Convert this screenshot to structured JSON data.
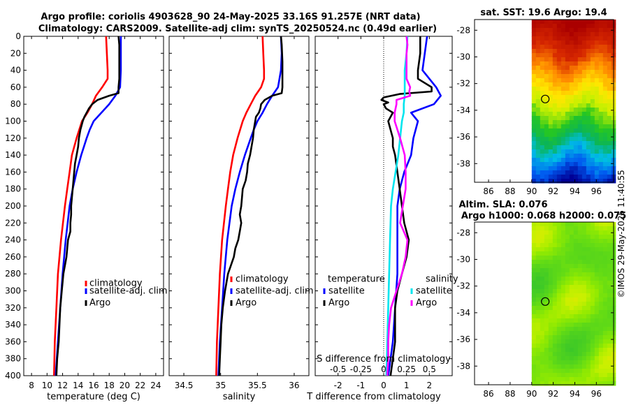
{
  "title_line1": "Argo profile: coriolis 4903628_90 24-May-2025 33.16S 91.257E (NRT data)",
  "title_line2": "Climatology: CARS2009. Satellite-adj clim: synTS_20250524.nc (0.49d earlier)",
  "credit": "©IMOS 29-May-2025 11:40:55",
  "colors": {
    "climatology": "#ff0000",
    "satellite": "#0000ff",
    "argo": "#000000",
    "salinity_sat": "#00e5ee",
    "salinity_argo": "#ff00ff"
  },
  "chart_data": [
    {
      "type": "line",
      "id": "temperature",
      "xlabel": "temperature (deg C)",
      "ylabel": "",
      "xlim": [
        7,
        25
      ],
      "ylim": [
        400,
        0
      ],
      "xticks": [
        8,
        10,
        12,
        14,
        16,
        18,
        20,
        22,
        24
      ],
      "yticks": [
        0,
        20,
        40,
        60,
        80,
        100,
        120,
        140,
        160,
        180,
        200,
        220,
        240,
        260,
        280,
        300,
        320,
        340,
        360,
        380,
        400
      ],
      "legend": [
        "climatology",
        "satellite-adj. clim",
        "Argo"
      ],
      "series": [
        {
          "name": "climatology",
          "color": "#ff0000",
          "depth": [
            0,
            20,
            40,
            50,
            60,
            70,
            80,
            90,
            100,
            120,
            140,
            160,
            180,
            200,
            240,
            280,
            320,
            360,
            400
          ],
          "values": [
            17.6,
            17.7,
            17.8,
            17.8,
            17.1,
            16.3,
            15.8,
            15.2,
            14.5,
            13.8,
            13.2,
            12.9,
            12.6,
            12.3,
            11.8,
            11.4,
            11.2,
            11.0,
            10.9
          ]
        },
        {
          "name": "satellite-adj. clim",
          "color": "#0000ff",
          "depth": [
            0,
            20,
            40,
            60,
            70,
            80,
            90,
            100,
            110,
            120,
            140,
            160,
            180,
            200,
            240,
            280,
            320,
            360,
            400
          ],
          "values": [
            19.5,
            19.5,
            19.5,
            19.4,
            18.8,
            18.0,
            17.0,
            16.0,
            15.5,
            15.1,
            14.4,
            13.8,
            13.3,
            12.9,
            12.4,
            12.0,
            11.7,
            11.4,
            11.1
          ]
        },
        {
          "name": "Argo",
          "color": "#000000",
          "depth": [
            0,
            10,
            30,
            50,
            60,
            67,
            70,
            75,
            80,
            85,
            90,
            95,
            100,
            110,
            120,
            130,
            140,
            150,
            160,
            170,
            180,
            200,
            210,
            220,
            230,
            240,
            250,
            260,
            270,
            280,
            300,
            320,
            340,
            360,
            380,
            400
          ],
          "values": [
            19.2,
            19.3,
            19.3,
            19.3,
            19.2,
            19.2,
            18.0,
            16.5,
            15.8,
            15.4,
            15.1,
            14.8,
            14.6,
            14.3,
            14.1,
            14.0,
            13.8,
            13.6,
            13.5,
            13.4,
            13.3,
            13.1,
            13.1,
            13.0,
            13.0,
            12.7,
            12.6,
            12.5,
            12.3,
            12.1,
            11.9,
            11.7,
            11.6,
            11.5,
            11.3,
            11.2
          ]
        }
      ]
    },
    {
      "type": "line",
      "id": "salinity",
      "xlabel": "salinity",
      "ylabel": "",
      "xlim": [
        34.3,
        36.2
      ],
      "ylim": [
        400,
        0
      ],
      "xticks": [
        34.5,
        35,
        35.5,
        36
      ],
      "xticklabels": [
        "34.5",
        "35",
        "35.5",
        "36"
      ],
      "legend": [
        "climatology",
        "satellite-adj. clim",
        "Argo"
      ],
      "series": [
        {
          "name": "climatology",
          "color": "#ff0000",
          "depth": [
            0,
            20,
            40,
            50,
            60,
            70,
            80,
            90,
            100,
            120,
            140,
            160,
            180,
            200,
            240,
            280,
            320,
            360,
            400
          ],
          "values": [
            35.57,
            35.58,
            35.59,
            35.59,
            35.55,
            35.47,
            35.41,
            35.35,
            35.3,
            35.23,
            35.17,
            35.13,
            35.1,
            35.07,
            35.02,
            34.99,
            34.97,
            34.95,
            34.94
          ]
        },
        {
          "name": "satellite-adj. clim",
          "color": "#0000ff",
          "depth": [
            0,
            20,
            40,
            60,
            70,
            80,
            90,
            100,
            110,
            120,
            140,
            160,
            180,
            200,
            240,
            280,
            320,
            360,
            400
          ],
          "values": [
            35.82,
            35.83,
            35.82,
            35.78,
            35.7,
            35.63,
            35.57,
            35.5,
            35.45,
            35.41,
            35.33,
            35.26,
            35.2,
            35.15,
            35.09,
            35.05,
            35.02,
            34.99,
            34.97
          ]
        },
        {
          "name": "Argo",
          "color": "#000000",
          "depth": [
            0,
            10,
            30,
            50,
            60,
            67,
            70,
            75,
            80,
            85,
            90,
            95,
            100,
            110,
            120,
            130,
            140,
            150,
            160,
            170,
            180,
            200,
            210,
            220,
            230,
            240,
            250,
            260,
            270,
            280,
            300,
            320,
            340,
            360,
            380,
            400
          ],
          "values": [
            35.82,
            35.83,
            35.84,
            35.84,
            35.84,
            35.83,
            35.7,
            35.6,
            35.55,
            35.54,
            35.52,
            35.48,
            35.47,
            35.45,
            35.44,
            35.42,
            35.4,
            35.37,
            35.36,
            35.34,
            35.3,
            35.28,
            35.26,
            35.28,
            35.26,
            35.24,
            35.2,
            35.18,
            35.14,
            35.1,
            35.06,
            35.03,
            35.01,
            35.0,
            34.99,
            34.98
          ]
        }
      ]
    },
    {
      "type": "line",
      "id": "difference",
      "xlabel": "T difference from climatology",
      "xlabel_top": "S difference from climatology",
      "xlim": [
        -3,
        3
      ],
      "ylim": [
        400,
        0
      ],
      "xticks": [
        -2,
        -1,
        0,
        1,
        2
      ],
      "xticklabels": [
        "-2",
        "-1",
        "0",
        "1",
        "2"
      ],
      "sticks": [
        -0.5,
        -0.25,
        0,
        0.25,
        0.5
      ],
      "sticklabels": [
        "-0.5",
        "-0.25",
        "0",
        "0.25",
        "0.5"
      ],
      "legend_temperature_title": "temperature",
      "legend_salinity_title": "salinity",
      "legend_temperature": [
        "satellite",
        "Argo"
      ],
      "legend_salinity": [
        "satellite",
        "Argo"
      ],
      "series": [
        {
          "name": "T satellite",
          "color": "#0000ff",
          "depth": [
            0,
            20,
            40,
            60,
            70,
            80,
            90,
            100,
            120,
            140,
            160,
            180,
            200,
            240,
            280,
            320,
            360,
            400
          ],
          "values": [
            1.9,
            1.8,
            1.7,
            2.3,
            2.5,
            2.2,
            1.2,
            1.5,
            1.3,
            1.2,
            0.9,
            0.7,
            0.6,
            0.6,
            0.6,
            0.5,
            0.4,
            0.2
          ]
        },
        {
          "name": "T Argo",
          "color": "#000000",
          "depth": [
            0,
            10,
            20,
            40,
            50,
            60,
            65,
            68,
            72,
            75,
            78,
            80,
            85,
            90,
            100,
            110,
            120,
            130,
            140,
            160,
            180,
            200,
            220,
            240,
            260,
            280,
            300,
            320,
            340,
            360,
            380,
            400
          ],
          "values": [
            1.6,
            1.6,
            1.6,
            1.5,
            1.5,
            2.1,
            2.1,
            0.7,
            0.0,
            -0.1,
            0.2,
            0.0,
            0.1,
            0.4,
            0.2,
            0.3,
            0.4,
            0.4,
            0.5,
            0.6,
            0.7,
            0.8,
            0.9,
            1.1,
            1.0,
            0.8,
            0.6,
            0.5,
            0.5,
            0.5,
            0.4,
            0.3
          ]
        },
        {
          "name": "S satellite",
          "color": "#00e5ee",
          "depth": [
            0,
            20,
            40,
            60,
            70,
            80,
            90,
            100,
            120,
            140,
            160,
            180,
            200,
            240,
            280,
            320,
            360,
            400
          ],
          "values": [
            0.26,
            0.25,
            0.23,
            0.23,
            0.23,
            0.22,
            0.22,
            0.2,
            0.18,
            0.16,
            0.13,
            0.1,
            0.08,
            0.07,
            0.06,
            0.05,
            0.04,
            0.03
          ]
        },
        {
          "name": "S Argo",
          "color": "#ff00ff",
          "depth": [
            0,
            10,
            20,
            40,
            50,
            60,
            65,
            70,
            75,
            80,
            90,
            100,
            120,
            140,
            160,
            180,
            200,
            220,
            240,
            260,
            280,
            300,
            320,
            340,
            360,
            380,
            400
          ],
          "values": [
            0.25,
            0.26,
            0.25,
            0.25,
            0.25,
            0.29,
            0.28,
            0.29,
            0.14,
            0.14,
            0.12,
            0.12,
            0.18,
            0.23,
            0.24,
            0.24,
            0.21,
            0.18,
            0.26,
            0.24,
            0.2,
            0.14,
            0.08,
            0.06,
            0.05,
            0.05,
            0.04
          ]
        }
      ]
    },
    {
      "type": "heatmap",
      "id": "sst_map",
      "title": "sat. SST: 19.6 Argo: 19.4",
      "xlim": [
        84.7,
        97.6
      ],
      "ylim": [
        -39.4,
        -27.2
      ],
      "xticks": [
        86,
        88,
        90,
        92,
        94,
        96
      ],
      "yticks": [
        -28,
        -30,
        -32,
        -34,
        -36,
        -38
      ],
      "data_x_start": 90,
      "marker": {
        "lon": 91.257,
        "lat": -33.16
      }
    },
    {
      "type": "heatmap",
      "id": "sla_map",
      "title_line1": "Altim. SLA: 0.076",
      "title_line2": "Argo h1000: 0.068 h2000: 0.075",
      "xlim": [
        84.7,
        97.6
      ],
      "ylim": [
        -39.4,
        -27.2
      ],
      "xticks": [
        86,
        88,
        90,
        92,
        94,
        96
      ],
      "yticks": [
        -28,
        -30,
        -32,
        -34,
        -36,
        -38
      ],
      "data_x_start": 90,
      "marker": {
        "lon": 91.257,
        "lat": -33.16
      }
    }
  ]
}
